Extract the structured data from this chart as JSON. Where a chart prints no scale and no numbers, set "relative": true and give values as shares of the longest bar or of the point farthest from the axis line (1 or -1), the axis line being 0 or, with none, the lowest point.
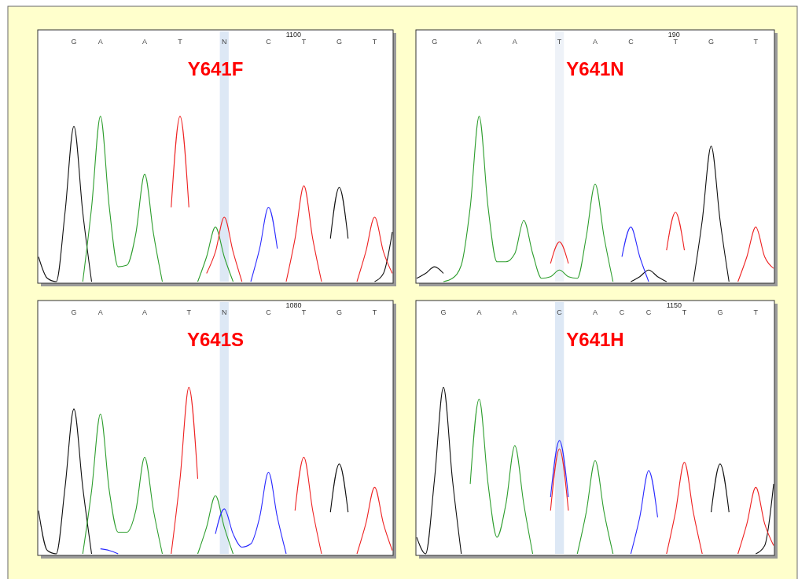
{
  "chart_data": [
    {
      "type": "line",
      "title": "Y641F",
      "relative": true,
      "categories": [
        null,
        null,
        null,
        null,
        "G",
        null,
        null,
        "A",
        null,
        null,
        null,
        null,
        "A",
        null,
        null,
        null,
        "T",
        null,
        null,
        null,
        null,
        "N",
        null,
        null,
        null,
        null,
        "C",
        null,
        null,
        null,
        "T",
        null,
        null,
        null,
        "G",
        null,
        null,
        null,
        "T",
        null,
        null
      ],
      "annotations": [
        "1100"
      ],
      "bands": [
        {
          "axis": "x",
          "from": "N",
          "to": "N",
          "color": "#dde8f5"
        }
      ],
      "series": [
        {
          "color": "#111111",
          "values": [
            0.15,
            0.02,
            0,
            0.42,
            0.94,
            0.42,
            0,
            null,
            null,
            null,
            null,
            null,
            null,
            null,
            null,
            null,
            null,
            null,
            null,
            null,
            null,
            null,
            null,
            null,
            null,
            null,
            null,
            null,
            null,
            null,
            null,
            null,
            null,
            0.26,
            0.57,
            0.26,
            null,
            null,
            0,
            0.05,
            0.3
          ]
        },
        {
          "color": "#2e9e2e",
          "values": [
            null,
            null,
            null,
            null,
            null,
            0,
            0.45,
            1,
            0.45,
            0.09,
            0.1,
            0.29,
            0.65,
            0.29,
            0,
            null,
            null,
            null,
            0,
            0.15,
            0.33,
            0.15,
            0,
            null,
            null,
            null,
            null,
            null,
            null,
            null,
            null,
            null,
            null,
            null,
            null,
            null,
            null,
            null,
            null,
            null,
            null
          ]
        },
        {
          "color": "#ee2222",
          "values": [
            null,
            null,
            null,
            null,
            null,
            null,
            null,
            null,
            null,
            null,
            null,
            null,
            null,
            null,
            null,
            0.45,
            1,
            0.45,
            null,
            0.05,
            0.18,
            0.39,
            0.18,
            0,
            null,
            null,
            null,
            null,
            0,
            0.26,
            0.58,
            0.26,
            0,
            null,
            null,
            null,
            0,
            0.18,
            0.39,
            0.18,
            0.05
          ]
        },
        {
          "color": "#2b2bff",
          "values": [
            null,
            null,
            null,
            null,
            null,
            null,
            null,
            null,
            null,
            null,
            null,
            null,
            null,
            null,
            null,
            null,
            null,
            null,
            null,
            null,
            null,
            null,
            null,
            null,
            0,
            0.2,
            0.45,
            0.2,
            null,
            null,
            null,
            null,
            null,
            null,
            null,
            null,
            null,
            null,
            null,
            null,
            null
          ]
        }
      ]
    },
    {
      "type": "line",
      "title": "Y641N",
      "relative": true,
      "categories": [
        null,
        null,
        "G",
        null,
        null,
        null,
        null,
        "A",
        null,
        null,
        null,
        "A",
        null,
        null,
        null,
        null,
        "T",
        null,
        null,
        null,
        "A",
        null,
        null,
        null,
        "C",
        null,
        null,
        null,
        null,
        "T",
        null,
        null,
        null,
        "G",
        null,
        null,
        null,
        null,
        "T",
        null,
        null
      ],
      "annotations": [
        "190"
      ],
      "bands": [
        {
          "axis": "x",
          "from": "T",
          "to": "T",
          "color": "#eef2f8"
        }
      ],
      "series": [
        {
          "color": "#111111",
          "values": [
            0.02,
            0.05,
            0.09,
            0.05,
            null,
            null,
            null,
            null,
            null,
            null,
            null,
            null,
            null,
            null,
            null,
            null,
            null,
            null,
            null,
            null,
            null,
            null,
            null,
            null,
            0,
            0.03,
            0.07,
            0.03,
            0,
            null,
            null,
            0,
            0.37,
            0.82,
            0.37,
            0,
            null,
            null,
            null,
            null,
            null
          ]
        },
        {
          "color": "#2e9e2e",
          "values": [
            null,
            null,
            null,
            0,
            0.02,
            0.1,
            0.45,
            1,
            0.45,
            0.12,
            0.12,
            0.17,
            0.37,
            0.17,
            0.02,
            0.03,
            0.07,
            0.03,
            0.02,
            0.27,
            0.59,
            0.27,
            0,
            null,
            null,
            null,
            null,
            null,
            null,
            null,
            null,
            null,
            null,
            null,
            null,
            null,
            null,
            null,
            null,
            null,
            null
          ]
        },
        {
          "color": "#ee2222",
          "values": [
            null,
            null,
            null,
            null,
            null,
            null,
            null,
            null,
            null,
            null,
            null,
            null,
            null,
            null,
            null,
            0.11,
            0.24,
            0.11,
            null,
            null,
            null,
            null,
            null,
            null,
            null,
            null,
            null,
            null,
            0.19,
            0.42,
            0.19,
            null,
            null,
            null,
            null,
            null,
            0,
            0.15,
            0.33,
            0.15,
            0.08
          ]
        },
        {
          "color": "#2b2bff",
          "values": [
            null,
            null,
            null,
            null,
            null,
            null,
            null,
            null,
            null,
            null,
            null,
            null,
            null,
            null,
            null,
            null,
            null,
            null,
            null,
            null,
            null,
            null,
            null,
            0.15,
            0.33,
            0.15,
            0,
            null,
            null,
            null,
            null,
            null,
            null,
            null,
            null,
            null,
            null,
            null,
            null,
            null,
            null
          ]
        }
      ]
    },
    {
      "type": "line",
      "title": "Y641S",
      "relative": true,
      "categories": [
        null,
        null,
        null,
        null,
        "G",
        null,
        null,
        "A",
        null,
        null,
        null,
        null,
        "A",
        null,
        null,
        null,
        null,
        "T",
        null,
        null,
        null,
        "N",
        null,
        null,
        null,
        null,
        "C",
        null,
        null,
        null,
        "T",
        null,
        null,
        null,
        "G",
        null,
        null,
        null,
        "T",
        null,
        null
      ],
      "annotations": [
        "1080"
      ],
      "bands": [
        {
          "axis": "x",
          "from": "N",
          "to": "N",
          "color": "#dde8f5"
        }
      ],
      "series": [
        {
          "color": "#111111",
          "values": [
            0.26,
            0.02,
            0,
            0.4,
            0.87,
            0.4,
            0,
            null,
            null,
            null,
            null,
            null,
            null,
            null,
            null,
            null,
            null,
            null,
            null,
            null,
            null,
            null,
            null,
            null,
            null,
            null,
            null,
            null,
            null,
            null,
            null,
            null,
            null,
            0.25,
            0.54,
            0.25,
            null,
            null,
            null,
            null,
            null
          ]
        },
        {
          "color": "#2e9e2e",
          "values": [
            null,
            null,
            null,
            null,
            null,
            0,
            0.38,
            0.84,
            0.38,
            0.13,
            0.13,
            0.26,
            0.58,
            0.26,
            0,
            null,
            null,
            null,
            0,
            0.16,
            0.35,
            0.16,
            0,
            null,
            null,
            null,
            null,
            null,
            null,
            null,
            null,
            null,
            null,
            null,
            null,
            null,
            null,
            null,
            null,
            null,
            null
          ]
        },
        {
          "color": "#ee2222",
          "values": [
            null,
            null,
            null,
            null,
            null,
            null,
            null,
            null,
            null,
            null,
            null,
            null,
            null,
            null,
            null,
            0,
            0.45,
            1,
            0.45,
            null,
            null,
            null,
            null,
            null,
            null,
            null,
            null,
            null,
            null,
            0.26,
            0.58,
            0.26,
            0,
            null,
            null,
            null,
            0,
            0.18,
            0.4,
            0.18,
            0.02
          ]
        },
        {
          "color": "#2b2bff",
          "values": [
            null,
            null,
            null,
            null,
            null,
            null,
            null,
            0.03,
            0.02,
            0,
            null,
            null,
            null,
            null,
            null,
            null,
            null,
            null,
            null,
            null,
            0.12,
            0.27,
            0.12,
            0.04,
            0.06,
            0.22,
            0.49,
            0.22,
            0,
            null,
            null,
            null,
            null,
            null,
            null,
            null,
            null,
            null,
            null,
            null,
            null
          ]
        }
      ]
    },
    {
      "type": "line",
      "title": "Y641H",
      "relative": true,
      "categories": [
        null,
        null,
        null,
        "G",
        null,
        null,
        null,
        "A",
        null,
        null,
        null,
        "A",
        null,
        null,
        null,
        null,
        "C",
        null,
        null,
        null,
        "A",
        null,
        null,
        "C",
        null,
        null,
        "C",
        null,
        null,
        null,
        "T",
        null,
        null,
        null,
        "G",
        null,
        null,
        null,
        "T",
        null,
        null
      ],
      "annotations": [
        "1150"
      ],
      "bands": [
        {
          "axis": "x",
          "from": "C",
          "to": "C",
          "color": "#dde8f5"
        }
      ],
      "series": [
        {
          "color": "#111111",
          "values": [
            0.1,
            0,
            0.45,
            1,
            0.45,
            0,
            null,
            null,
            null,
            null,
            null,
            null,
            null,
            null,
            null,
            null,
            null,
            null,
            null,
            null,
            null,
            null,
            null,
            null,
            null,
            null,
            null,
            null,
            null,
            null,
            null,
            null,
            null,
            0.25,
            0.54,
            0.25,
            null,
            null,
            0,
            0.05,
            0.42
          ]
        },
        {
          "color": "#2e9e2e",
          "values": [
            null,
            null,
            null,
            null,
            null,
            null,
            0.42,
            0.93,
            0.42,
            0.1,
            0.3,
            0.65,
            0.3,
            0,
            null,
            null,
            null,
            null,
            0,
            0.25,
            0.56,
            0.25,
            0,
            null,
            null,
            null,
            null,
            null,
            null,
            null,
            null,
            null,
            null,
            null,
            null,
            null,
            null,
            null,
            null,
            null,
            null
          ]
        },
        {
          "color": "#2b2bff",
          "values": [
            null,
            null,
            null,
            null,
            null,
            null,
            null,
            null,
            null,
            null,
            null,
            null,
            null,
            null,
            null,
            0.34,
            0.68,
            0.34,
            null,
            null,
            null,
            null,
            null,
            null,
            0,
            0.22,
            0.5,
            0.22,
            null,
            null,
            null,
            null,
            null,
            null,
            null,
            null,
            null,
            null,
            null,
            null,
            null
          ]
        },
        {
          "color": "#ee2222",
          "values": [
            null,
            null,
            null,
            null,
            null,
            null,
            null,
            null,
            null,
            null,
            null,
            null,
            null,
            null,
            null,
            0.26,
            0.63,
            0.26,
            null,
            null,
            null,
            null,
            null,
            null,
            null,
            null,
            null,
            null,
            0,
            0.25,
            0.55,
            0.25,
            0,
            null,
            null,
            null,
            0,
            0.18,
            0.4,
            0.18,
            0.05
          ]
        }
      ]
    }
  ]
}
